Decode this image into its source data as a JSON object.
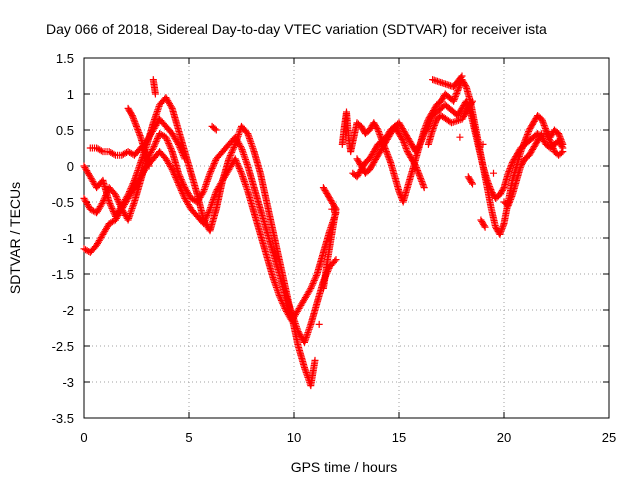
{
  "chart_data": {
    "type": "scatter",
    "title": "Day 066 of 2018, Sidereal Day-to-day VTEC variation (SDTVAR) for receiver ista",
    "xlabel": "GPS time / hours",
    "ylabel": "SDTVAR / TECUs",
    "xlim": [
      0,
      25
    ],
    "ylim": [
      -3.5,
      1.5
    ],
    "xticks": [
      0,
      5,
      10,
      15,
      20,
      25
    ],
    "yticks": [
      -3.5,
      -3,
      -2.5,
      -2,
      -1.5,
      -1,
      -0.5,
      0,
      0.5,
      1,
      1.5
    ],
    "xtick_labels": [
      "0",
      "5",
      "10",
      "15",
      "20",
      "25"
    ],
    "ytick_labels": [
      "-3.5",
      "-3",
      "-2.5",
      "-2",
      "-1.5",
      "-1",
      "-0.5",
      "0",
      "0.5",
      "1",
      "1.5"
    ],
    "grid": true,
    "marker": "+",
    "color": "#ff0000",
    "series": [
      {
        "points": [
          [
            0,
            0
          ],
          [
            0.3,
            -0.15
          ],
          [
            0.6,
            -0.3
          ],
          [
            0.9,
            -0.2
          ],
          [
            1.2,
            -0.5
          ],
          [
            1.5,
            -0.7
          ],
          [
            1.8,
            -0.55
          ],
          [
            2.1,
            -0.4
          ],
          [
            2.4,
            -0.2
          ],
          [
            2.7,
            0.05
          ],
          [
            3.0,
            0.3
          ],
          [
            3.3,
            0.6
          ],
          [
            3.6,
            0.85
          ],
          [
            3.9,
            0.95
          ],
          [
            4.2,
            0.8
          ],
          [
            4.5,
            0.5
          ],
          [
            4.8,
            0.2
          ],
          [
            5.1,
            -0.1
          ],
          [
            5.4,
            -0.4
          ],
          [
            5.7,
            -0.75
          ],
          [
            6.0,
            -0.9
          ],
          [
            6.3,
            -0.6
          ],
          [
            6.6,
            -0.2
          ],
          [
            6.9,
            0.1
          ],
          [
            7.2,
            0.3
          ],
          [
            7.5,
            0.55
          ],
          [
            7.8,
            0.45
          ],
          [
            8.1,
            0.2
          ],
          [
            8.4,
            -0.1
          ],
          [
            8.7,
            -0.5
          ],
          [
            9.0,
            -0.9
          ],
          [
            9.3,
            -1.3
          ],
          [
            9.6,
            -1.7
          ],
          [
            9.9,
            -2.1
          ],
          [
            10.2,
            -2.5
          ],
          [
            10.5,
            -2.8
          ],
          [
            10.8,
            -3.05
          ],
          [
            11.0,
            -2.7
          ],
          [
            11.2,
            -2.2
          ],
          [
            11.4,
            -1.7
          ],
          [
            11.6,
            -1.3
          ],
          [
            11.8,
            -0.95
          ],
          [
            12.0,
            -0.6
          ]
        ]
      },
      {
        "points": [
          [
            0,
            -0.45
          ],
          [
            0.3,
            -0.6
          ],
          [
            0.6,
            -0.65
          ],
          [
            0.9,
            -0.5
          ],
          [
            1.2,
            -0.3
          ],
          [
            1.5,
            -0.4
          ],
          [
            1.8,
            -0.6
          ],
          [
            2.1,
            -0.75
          ],
          [
            2.4,
            -0.5
          ],
          [
            2.7,
            -0.2
          ],
          [
            3.0,
            0.1
          ],
          [
            3.3,
            0.25
          ],
          [
            3.6,
            0.45
          ],
          [
            3.9,
            0.4
          ],
          [
            4.2,
            0.2
          ],
          [
            4.5,
            -0.1
          ],
          [
            4.8,
            -0.3
          ],
          [
            5.1,
            -0.45
          ],
          [
            5.4,
            -0.5
          ],
          [
            5.7,
            -0.35
          ],
          [
            6.0,
            -0.1
          ],
          [
            6.3,
            0.1
          ],
          [
            6.6,
            0.2
          ],
          [
            6.9,
            0.3
          ],
          [
            7.2,
            0.4
          ],
          [
            7.5,
            0.25
          ],
          [
            7.8,
            0.0
          ],
          [
            8.1,
            -0.3
          ],
          [
            8.4,
            -0.6
          ],
          [
            8.7,
            -0.9
          ],
          [
            9.0,
            -1.2
          ],
          [
            9.3,
            -1.5
          ],
          [
            9.6,
            -1.8
          ],
          [
            9.9,
            -2.05
          ],
          [
            10.2,
            -2.3
          ],
          [
            10.5,
            -2.45
          ],
          [
            10.8,
            -2.2
          ],
          [
            11.1,
            -1.9
          ],
          [
            11.4,
            -1.6
          ],
          [
            11.7,
            -1.4
          ],
          [
            12.0,
            -1.3
          ]
        ]
      },
      {
        "points": [
          [
            0,
            -1.15
          ],
          [
            0.3,
            -1.2
          ],
          [
            0.6,
            -1.1
          ],
          [
            0.9,
            -0.95
          ],
          [
            1.2,
            -0.8
          ],
          [
            1.5,
            -0.75
          ],
          [
            1.8,
            -0.6
          ],
          [
            2.1,
            -0.45
          ],
          [
            2.4,
            -0.3
          ],
          [
            2.7,
            -0.15
          ],
          [
            3.0,
            0.0
          ],
          [
            3.3,
            0.1
          ],
          [
            3.6,
            0.2
          ],
          [
            3.9,
            0.1
          ],
          [
            4.2,
            -0.05
          ],
          [
            4.5,
            -0.25
          ],
          [
            4.8,
            -0.45
          ],
          [
            5.1,
            -0.6
          ],
          [
            5.4,
            -0.7
          ],
          [
            5.7,
            -0.8
          ],
          [
            6.0,
            -0.6
          ],
          [
            6.3,
            -0.35
          ],
          [
            6.6,
            -0.2
          ],
          [
            6.9,
            -0.05
          ],
          [
            7.2,
            0.1
          ],
          [
            7.5,
            -0.1
          ],
          [
            7.8,
            -0.35
          ],
          [
            8.1,
            -0.65
          ],
          [
            8.4,
            -0.95
          ],
          [
            8.7,
            -1.25
          ],
          [
            9.0,
            -1.55
          ],
          [
            9.3,
            -1.8
          ],
          [
            9.6,
            -2.0
          ],
          [
            9.9,
            -2.15
          ],
          [
            10.2,
            -2.0
          ],
          [
            10.5,
            -1.85
          ],
          [
            10.8,
            -1.7
          ],
          [
            11.1,
            -1.5
          ],
          [
            11.4,
            -1.2
          ],
          [
            11.7,
            -0.9
          ],
          [
            12.0,
            -0.65
          ]
        ]
      },
      {
        "points": [
          [
            0.3,
            0.25
          ],
          [
            0.6,
            0.25
          ],
          [
            0.9,
            0.2
          ],
          [
            1.2,
            0.2
          ],
          [
            1.5,
            0.15
          ],
          [
            1.8,
            0.15
          ],
          [
            2.1,
            0.2
          ],
          [
            2.4,
            0.15
          ],
          [
            2.7,
            0.25
          ],
          [
            3.0,
            0.35
          ],
          [
            3.3,
            0.5
          ],
          [
            3.6,
            0.65
          ],
          [
            3.9,
            0.55
          ],
          [
            4.2,
            0.45
          ],
          [
            4.5,
            0.3
          ],
          [
            4.8,
            0.1
          ]
        ]
      },
      {
        "points": [
          [
            2.1,
            0.8
          ],
          [
            2.3,
            0.7
          ],
          [
            2.5,
            0.55
          ],
          [
            2.7,
            0.4
          ],
          [
            2.9,
            0.2
          ],
          [
            3.1,
            0.0
          ],
          [
            3.3,
            1.2
          ],
          [
            3.4,
            1.0
          ],
          [
            6.1,
            0.55
          ],
          [
            6.3,
            0.5
          ],
          [
            11.8,
            -0.6
          ],
          [
            12.0,
            -0.6
          ],
          [
            11.4,
            -0.3
          ]
        ]
      },
      {
        "points": [
          [
            12.3,
            0.3
          ],
          [
            12.4,
            0.55
          ],
          [
            12.5,
            0.75
          ],
          [
            12.6,
            0.4
          ],
          [
            12.7,
            0.2
          ],
          [
            13.0,
            0.6
          ],
          [
            13.2,
            0.55
          ],
          [
            13.4,
            0.45
          ],
          [
            13.6,
            0.5
          ],
          [
            13.8,
            0.6
          ],
          [
            14.0,
            0.5
          ],
          [
            14.2,
            0.35
          ],
          [
            14.4,
            0.2
          ],
          [
            14.6,
            0.05
          ],
          [
            14.8,
            -0.15
          ],
          [
            15.0,
            -0.35
          ],
          [
            15.2,
            -0.5
          ],
          [
            15.4,
            -0.3
          ],
          [
            15.6,
            -0.1
          ],
          [
            15.8,
            0.1
          ],
          [
            16.0,
            0.3
          ],
          [
            16.2,
            0.5
          ],
          [
            16.4,
            0.65
          ],
          [
            16.6,
            0.75
          ],
          [
            16.8,
            0.85
          ],
          [
            17.0,
            0.9
          ],
          [
            17.2,
            1.0
          ],
          [
            17.4,
            0.95
          ],
          [
            17.6,
            0.9
          ],
          [
            17.8,
            1.05
          ],
          [
            18.0,
            1.2
          ],
          [
            18.2,
            1.1
          ],
          [
            18.4,
            0.9
          ],
          [
            18.6,
            0.6
          ],
          [
            18.8,
            0.3
          ],
          [
            19.0,
            0.0
          ],
          [
            19.2,
            -0.3
          ],
          [
            19.4,
            -0.6
          ],
          [
            19.6,
            -0.85
          ],
          [
            19.8,
            -0.95
          ],
          [
            20.0,
            -0.8
          ],
          [
            20.2,
            -0.5
          ],
          [
            20.4,
            -0.2
          ],
          [
            20.6,
            0.0
          ],
          [
            20.8,
            0.2
          ],
          [
            21.0,
            0.35
          ],
          [
            21.2,
            0.5
          ],
          [
            21.4,
            0.6
          ],
          [
            21.6,
            0.7
          ],
          [
            21.8,
            0.65
          ],
          [
            22.0,
            0.5
          ],
          [
            22.2,
            0.4
          ],
          [
            22.4,
            0.5
          ],
          [
            22.6,
            0.45
          ],
          [
            22.8,
            0.3
          ]
        ]
      },
      {
        "points": [
          [
            13.0,
            0.1
          ],
          [
            13.2,
            0.0
          ],
          [
            13.4,
            -0.1
          ],
          [
            13.6,
            -0.05
          ],
          [
            13.8,
            0.05
          ],
          [
            14.0,
            0.15
          ],
          [
            14.2,
            0.25
          ],
          [
            14.4,
            0.35
          ],
          [
            14.6,
            0.45
          ],
          [
            14.8,
            0.55
          ],
          [
            15.0,
            0.6
          ],
          [
            15.2,
            0.5
          ],
          [
            15.4,
            0.4
          ],
          [
            15.6,
            0.3
          ],
          [
            15.8,
            0.2
          ],
          [
            16.0,
            0.3
          ],
          [
            16.2,
            0.45
          ],
          [
            16.4,
            0.55
          ],
          [
            16.6,
            0.7
          ],
          [
            16.8,
            0.75
          ],
          [
            17.0,
            0.8
          ],
          [
            17.2,
            0.85
          ],
          [
            17.4,
            0.8
          ],
          [
            17.6,
            0.75
          ],
          [
            17.8,
            0.7
          ],
          [
            18.0,
            0.8
          ],
          [
            18.2,
            0.9
          ],
          [
            18.4,
            0.75
          ],
          [
            18.6,
            0.5
          ],
          [
            18.8,
            0.25
          ],
          [
            19.0,
            0.0
          ],
          [
            19.2,
            -0.2
          ],
          [
            19.4,
            -0.35
          ],
          [
            19.6,
            -0.45
          ],
          [
            19.8,
            -0.4
          ],
          [
            20.0,
            -0.3
          ],
          [
            20.2,
            -0.1
          ],
          [
            20.4,
            0.05
          ],
          [
            20.6,
            0.15
          ],
          [
            20.8,
            0.25
          ],
          [
            21.0,
            0.3
          ],
          [
            21.2,
            0.35
          ],
          [
            21.4,
            0.4
          ],
          [
            21.6,
            0.45
          ],
          [
            21.8,
            0.4
          ],
          [
            22.0,
            0.3
          ],
          [
            22.2,
            0.25
          ],
          [
            22.4,
            0.3
          ],
          [
            22.6,
            0.35
          ],
          [
            22.8,
            0.25
          ]
        ]
      },
      {
        "points": [
          [
            12.8,
            -0.1
          ],
          [
            13.0,
            -0.15
          ],
          [
            13.2,
            -0.05
          ],
          [
            13.4,
            0.05
          ],
          [
            13.6,
            0.1
          ],
          [
            13.8,
            0.2
          ],
          [
            14.0,
            0.3
          ],
          [
            14.2,
            0.35
          ],
          [
            14.4,
            0.4
          ],
          [
            14.6,
            0.5
          ],
          [
            14.8,
            0.55
          ],
          [
            15.0,
            0.45
          ],
          [
            15.2,
            0.35
          ],
          [
            15.4,
            0.2
          ],
          [
            15.6,
            0.1
          ],
          [
            15.8,
            0.0
          ],
          [
            16.0,
            -0.15
          ],
          [
            16.2,
            -0.3
          ],
          [
            16.4,
            0.3
          ],
          [
            16.6,
            0.5
          ],
          [
            16.8,
            0.65
          ],
          [
            17.0,
            0.7
          ],
          [
            17.5,
            0.6
          ],
          [
            18.0,
            0.65
          ],
          [
            18.5,
            0.9
          ],
          [
            19.0,
            0.3
          ],
          [
            19.5,
            -0.1
          ],
          [
            20.0,
            -0.5
          ],
          [
            20.2,
            -0.55
          ],
          [
            20.4,
            -0.4
          ],
          [
            20.6,
            -0.2
          ],
          [
            20.8,
            0.0
          ],
          [
            21.0,
            0.1
          ],
          [
            21.2,
            0.15
          ],
          [
            21.4,
            0.25
          ],
          [
            21.6,
            0.35
          ],
          [
            21.8,
            0.45
          ],
          [
            22.0,
            0.45
          ],
          [
            22.2,
            0.35
          ],
          [
            22.4,
            0.2
          ],
          [
            22.6,
            0.15
          ],
          [
            22.8,
            0.2
          ]
        ]
      },
      {
        "points": [
          [
            16.6,
            1.2
          ],
          [
            17.6,
            1.1
          ],
          [
            18.0,
            1.25
          ],
          [
            17.9,
            0.4
          ],
          [
            18.3,
            -0.15
          ],
          [
            18.5,
            -0.25
          ],
          [
            18.9,
            -0.75
          ],
          [
            19.1,
            -0.85
          ]
        ]
      }
    ]
  }
}
